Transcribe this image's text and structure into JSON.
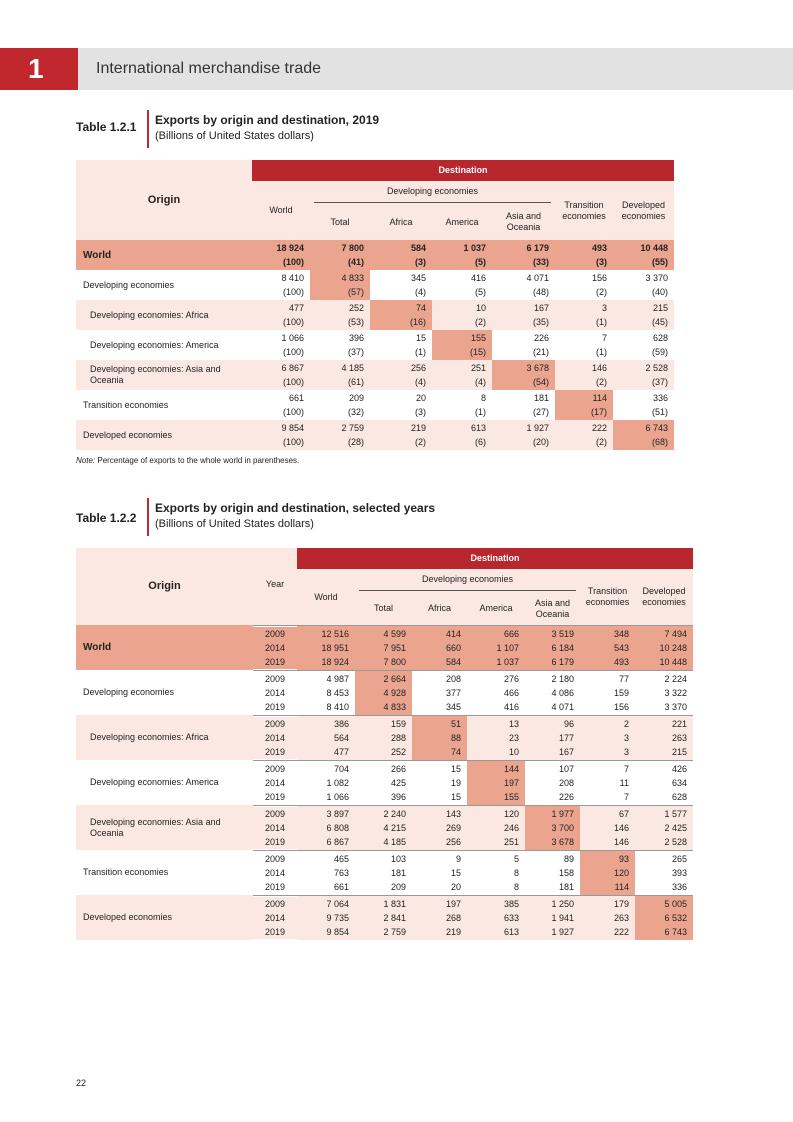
{
  "header": {
    "chapter": "1",
    "title": "International merchandise trade"
  },
  "table1": {
    "label": "Table 1.2.1",
    "title": "Exports by origin and destination, 2019",
    "subtitle": "(Billions of United States dollars)",
    "origin_header": "Origin",
    "destination_header": "Destination",
    "developing_header": "Developing economies",
    "columns": [
      "World",
      "Total",
      "Africa",
      "America",
      "Asia and Oceania",
      "Transition economies",
      "Developed economies"
    ],
    "rows": [
      {
        "origin": "World",
        "values": [
          "18 924",
          "7 800",
          "584",
          "1 037",
          "6 179",
          "493",
          "10 448"
        ],
        "shares": [
          "(100)",
          "(41)",
          "(3)",
          "(5)",
          "(33)",
          "(3)",
          "(55)"
        ]
      },
      {
        "origin": "Developing economies",
        "values": [
          "8 410",
          "4 833",
          "345",
          "416",
          "4 071",
          "156",
          "3 370"
        ],
        "shares": [
          "(100)",
          "(57)",
          "(4)",
          "(5)",
          "(48)",
          "(2)",
          "(40)"
        ]
      },
      {
        "origin": "Developing economies: Africa",
        "values": [
          "477",
          "252",
          "74",
          "10",
          "167",
          "3",
          "215"
        ],
        "shares": [
          "(100)",
          "(53)",
          "(16)",
          "(2)",
          "(35)",
          "(1)",
          "(45)"
        ]
      },
      {
        "origin": "Developing economies: America",
        "values": [
          "1 066",
          "396",
          "15",
          "155",
          "226",
          "7",
          "628"
        ],
        "shares": [
          "(100)",
          "(37)",
          "(1)",
          "(15)",
          "(21)",
          "(1)",
          "(59)"
        ]
      },
      {
        "origin": "Developing economies: Asia and Oceania",
        "values": [
          "6 867",
          "4 185",
          "256",
          "251",
          "3 678",
          "146",
          "2 528"
        ],
        "shares": [
          "(100)",
          "(61)",
          "(4)",
          "(4)",
          "(54)",
          "(2)",
          "(37)"
        ]
      },
      {
        "origin": "Transition economies",
        "values": [
          "661",
          "209",
          "20",
          "8",
          "181",
          "114",
          "336"
        ],
        "shares": [
          "(100)",
          "(32)",
          "(3)",
          "(1)",
          "(27)",
          "(17)",
          "(51)"
        ]
      },
      {
        "origin": "Developed economies",
        "values": [
          "9 854",
          "2 759",
          "219",
          "613",
          "1 927",
          "222",
          "6 743"
        ],
        "shares": [
          "(100)",
          "(28)",
          "(2)",
          "(6)",
          "(20)",
          "(2)",
          "(68)"
        ]
      }
    ],
    "note_label": "Note:",
    "note": "Percentage of exports to the whole world in parentheses."
  },
  "table2": {
    "label": "Table 1.2.2",
    "title": "Exports by origin and destination, selected years",
    "subtitle": "(Billions of United States dollars)",
    "origin_header": "Origin",
    "year_header": "Year",
    "destination_header": "Destination",
    "developing_header": "Developing economies",
    "columns": [
      "World",
      "Total",
      "Africa",
      "America",
      "Asia and Oceania",
      "Transition economies",
      "Developed economies"
    ],
    "rows": [
      {
        "origin": "World",
        "years": [
          "2009",
          "2014",
          "2019"
        ],
        "values": [
          [
            "12 516",
            "4 599",
            "414",
            "666",
            "3 519",
            "348",
            "7 494"
          ],
          [
            "18 951",
            "7 951",
            "660",
            "1 107",
            "6 184",
            "543",
            "10 248"
          ],
          [
            "18 924",
            "7 800",
            "584",
            "1 037",
            "6 179",
            "493",
            "10 448"
          ]
        ]
      },
      {
        "origin": "Developing economies",
        "years": [
          "2009",
          "2014",
          "2019"
        ],
        "values": [
          [
            "4 987",
            "2 664",
            "208",
            "276",
            "2 180",
            "77",
            "2 224"
          ],
          [
            "8 453",
            "4 928",
            "377",
            "466",
            "4 086",
            "159",
            "3 322"
          ],
          [
            "8 410",
            "4 833",
            "345",
            "416",
            "4 071",
            "156",
            "3 370"
          ]
        ]
      },
      {
        "origin": "Developing economies: Africa",
        "years": [
          "2009",
          "2014",
          "2019"
        ],
        "values": [
          [
            "386",
            "159",
            "51",
            "13",
            "96",
            "2",
            "221"
          ],
          [
            "564",
            "288",
            "88",
            "23",
            "177",
            "3",
            "263"
          ],
          [
            "477",
            "252",
            "74",
            "10",
            "167",
            "3",
            "215"
          ]
        ]
      },
      {
        "origin": "Developing economies: America",
        "years": [
          "2009",
          "2014",
          "2019"
        ],
        "values": [
          [
            "704",
            "266",
            "15",
            "144",
            "107",
            "7",
            "426"
          ],
          [
            "1 082",
            "425",
            "19",
            "197",
            "208",
            "11",
            "634"
          ],
          [
            "1 066",
            "396",
            "15",
            "155",
            "226",
            "7",
            "628"
          ]
        ]
      },
      {
        "origin": "Developing economies: Asia and Oceania",
        "years": [
          "2009",
          "2014",
          "2019"
        ],
        "values": [
          [
            "3 897",
            "2 240",
            "143",
            "120",
            "1 977",
            "67",
            "1 577"
          ],
          [
            "6 808",
            "4 215",
            "269",
            "246",
            "3 700",
            "146",
            "2 425"
          ],
          [
            "6 867",
            "4 185",
            "256",
            "251",
            "3 678",
            "146",
            "2 528"
          ]
        ]
      },
      {
        "origin": "Transition economies",
        "years": [
          "2009",
          "2014",
          "2019"
        ],
        "values": [
          [
            "465",
            "103",
            "9",
            "5",
            "89",
            "93",
            "265"
          ],
          [
            "763",
            "181",
            "15",
            "8",
            "158",
            "120",
            "393"
          ],
          [
            "661",
            "209",
            "20",
            "8",
            "181",
            "114",
            "336"
          ]
        ]
      },
      {
        "origin": "Developed economies",
        "years": [
          "2009",
          "2014",
          "2019"
        ],
        "values": [
          [
            "7 064",
            "1 831",
            "197",
            "385",
            "1 250",
            "179",
            "5 005"
          ],
          [
            "9 735",
            "2 841",
            "268",
            "633",
            "1 941",
            "263",
            "6 532"
          ],
          [
            "9 854",
            "2 759",
            "219",
            "613",
            "1 927",
            "222",
            "6 743"
          ]
        ]
      }
    ]
  },
  "page_number": "22"
}
